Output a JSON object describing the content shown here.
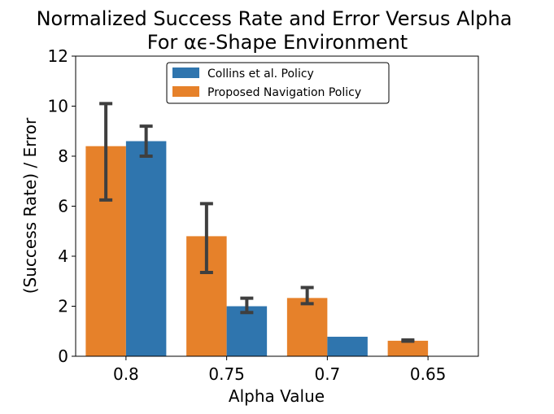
{
  "chart_data": {
    "type": "bar",
    "title_lines": [
      "Normalized Success Rate and Error Versus Alpha",
      "For αϵ-Shape Environment"
    ],
    "xlabel": "Alpha Value",
    "ylabel": "(Success Rate) / Error",
    "ylim": [
      0,
      12
    ],
    "yticks": [
      "0",
      "2",
      "4",
      "6",
      "8",
      "10",
      "12"
    ],
    "categories": [
      "0.8",
      "0.75",
      "0.7",
      "0.65"
    ],
    "legend_position": "upper-center",
    "series": [
      {
        "name": "Proposed Navigation Policy",
        "color": "#e6812a",
        "values": [
          8.4,
          4.8,
          2.33,
          0.62
        ],
        "err_low": [
          6.25,
          3.35,
          2.1,
          0.6
        ],
        "err_high": [
          10.1,
          6.1,
          2.75,
          0.65
        ]
      },
      {
        "name": "Collins et al. Policy",
        "color": "#2f75ae",
        "values": [
          8.6,
          2.0,
          0.78,
          0.0
        ],
        "err_low": [
          8.0,
          1.75,
          0.78,
          0.0
        ],
        "err_high": [
          9.2,
          2.32,
          0.78,
          0.0
        ]
      }
    ],
    "legend_order": [
      1,
      0
    ]
  }
}
